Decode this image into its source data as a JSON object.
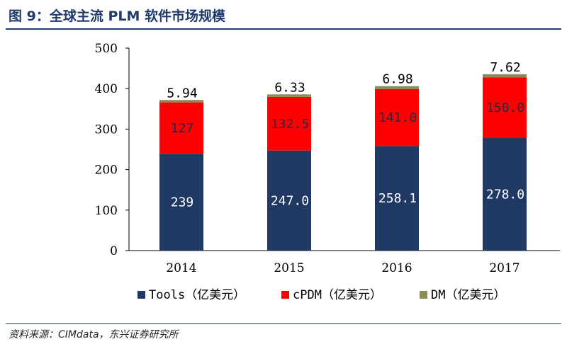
{
  "page": {
    "title": "图 9：全球主流 PLM 软件市场规模",
    "source": "资料来源：CIMdata，东兴证券研究所"
  },
  "chart_data": {
    "type": "bar",
    "stacked": true,
    "title": "图 9：全球主流 PLM 软件市场规模",
    "xlabel": "",
    "ylabel": "",
    "categories": [
      "2014",
      "2015",
      "2016",
      "2017"
    ],
    "ylim": [
      0,
      500
    ],
    "yticks": [
      0,
      100,
      200,
      300,
      400,
      500
    ],
    "grid": false,
    "legend_position": "bottom",
    "series": [
      {
        "name": "Tools（亿美元）",
        "color": "#203864",
        "label_color": "#ffffff",
        "values": [
          239,
          247.0,
          258.1,
          278.0
        ],
        "labels": [
          "239",
          "247.0",
          "258.1",
          "278.0"
        ]
      },
      {
        "name": "cPDM（亿美元）",
        "color": "#ff0000",
        "label_color": "#1f2a44",
        "values": [
          127,
          132.5,
          141.0,
          150.0
        ],
        "labels": [
          "127",
          "132.5",
          "141.0",
          "150.0"
        ]
      },
      {
        "name": "DM（亿美元）",
        "color": "#8c8c5a",
        "label_color": "#000000",
        "values": [
          5.94,
          6.33,
          6.98,
          7.62
        ],
        "labels": [
          "5.94",
          "6.33",
          "6.98",
          "7.62"
        ]
      }
    ]
  }
}
